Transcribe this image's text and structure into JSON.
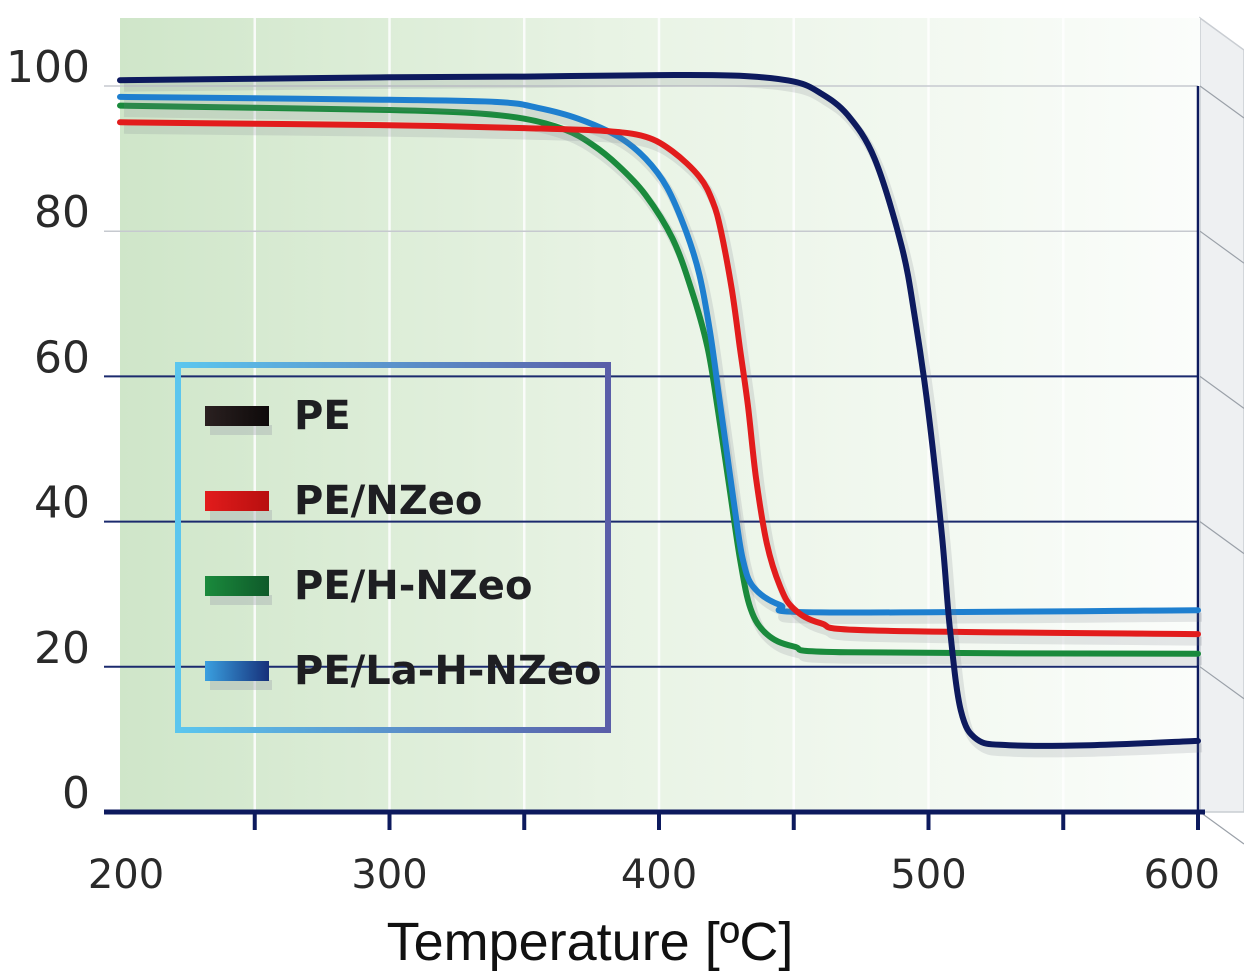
{
  "chart_data": {
    "type": "line",
    "xlabel": "Temperature [ºC]",
    "ylabel": "",
    "title": "",
    "xlim": [
      200,
      600
    ],
    "ylim": [
      0,
      100
    ],
    "x_ticks": [
      "200",
      "300",
      "400",
      "500",
      "600"
    ],
    "y_ticks": [
      "0",
      "20",
      "40",
      "60",
      "80",
      "100"
    ],
    "grid": true,
    "legend_position": "left",
    "series": [
      {
        "name": "PE",
        "color": "#0d1a5e",
        "points": [
          [
            200,
            100.8
          ],
          [
            250,
            101
          ],
          [
            300,
            101.2
          ],
          [
            350,
            101.3
          ],
          [
            400,
            101.5
          ],
          [
            430,
            101.4
          ],
          [
            450,
            100.6
          ],
          [
            460,
            99
          ],
          [
            470,
            96
          ],
          [
            480,
            90
          ],
          [
            490,
            78
          ],
          [
            495,
            68
          ],
          [
            500,
            55
          ],
          [
            505,
            38
          ],
          [
            508,
            25
          ],
          [
            512,
            14
          ],
          [
            518,
            10
          ],
          [
            530,
            9.2
          ],
          [
            560,
            9.2
          ],
          [
            600,
            9.8
          ]
        ]
      },
      {
        "name": "PE/NZeo",
        "color": "#e21c1c",
        "points": [
          [
            200,
            95
          ],
          [
            250,
            94.8
          ],
          [
            300,
            94.6
          ],
          [
            350,
            94.2
          ],
          [
            380,
            93.8
          ],
          [
            395,
            93
          ],
          [
            405,
            91
          ],
          [
            415,
            87.5
          ],
          [
            420,
            84
          ],
          [
            423,
            80
          ],
          [
            427,
            72
          ],
          [
            430,
            64
          ],
          [
            433,
            56
          ],
          [
            436,
            46
          ],
          [
            440,
            37
          ],
          [
            445,
            31
          ],
          [
            450,
            28
          ],
          [
            460,
            26
          ],
          [
            480,
            25
          ],
          [
            600,
            24.5
          ]
        ]
      },
      {
        "name": "PE/H-NZeo",
        "color": "#1a8a3c",
        "points": [
          [
            200,
            97.3
          ],
          [
            250,
            97
          ],
          [
            300,
            96.7
          ],
          [
            330,
            96.3
          ],
          [
            350,
            95.5
          ],
          [
            365,
            94
          ],
          [
            375,
            92
          ],
          [
            385,
            89
          ],
          [
            395,
            85
          ],
          [
            405,
            79
          ],
          [
            412,
            72
          ],
          [
            418,
            64
          ],
          [
            422,
            55
          ],
          [
            426,
            45
          ],
          [
            430,
            35
          ],
          [
            434,
            28
          ],
          [
            440,
            24.5
          ],
          [
            450,
            22.8
          ],
          [
            470,
            22
          ],
          [
            600,
            21.8
          ]
        ]
      },
      {
        "name": "PE/La-H-NZeo",
        "color": "#1e7fcf",
        "points": [
          [
            200,
            98.5
          ],
          [
            250,
            98.3
          ],
          [
            300,
            98.1
          ],
          [
            340,
            97.8
          ],
          [
            355,
            97
          ],
          [
            370,
            95.5
          ],
          [
            385,
            93
          ],
          [
            395,
            90
          ],
          [
            403,
            86
          ],
          [
            410,
            80
          ],
          [
            415,
            74
          ],
          [
            419,
            66
          ],
          [
            422,
            58
          ],
          [
            425,
            50
          ],
          [
            428,
            42
          ],
          [
            431,
            35
          ],
          [
            435,
            31
          ],
          [
            445,
            28.5
          ],
          [
            460,
            27.5
          ],
          [
            600,
            27.8
          ]
        ]
      }
    ]
  },
  "legend": {
    "items": [
      {
        "label": "PE",
        "color": "#1a1414"
      },
      {
        "label": "PE/NZeo",
        "color": "#e21c1c"
      },
      {
        "label": "PE/H-NZeo",
        "color": "#1a8a3c"
      },
      {
        "label": "PE/La-H-NZeo",
        "color": "#1e7fcf"
      }
    ]
  }
}
